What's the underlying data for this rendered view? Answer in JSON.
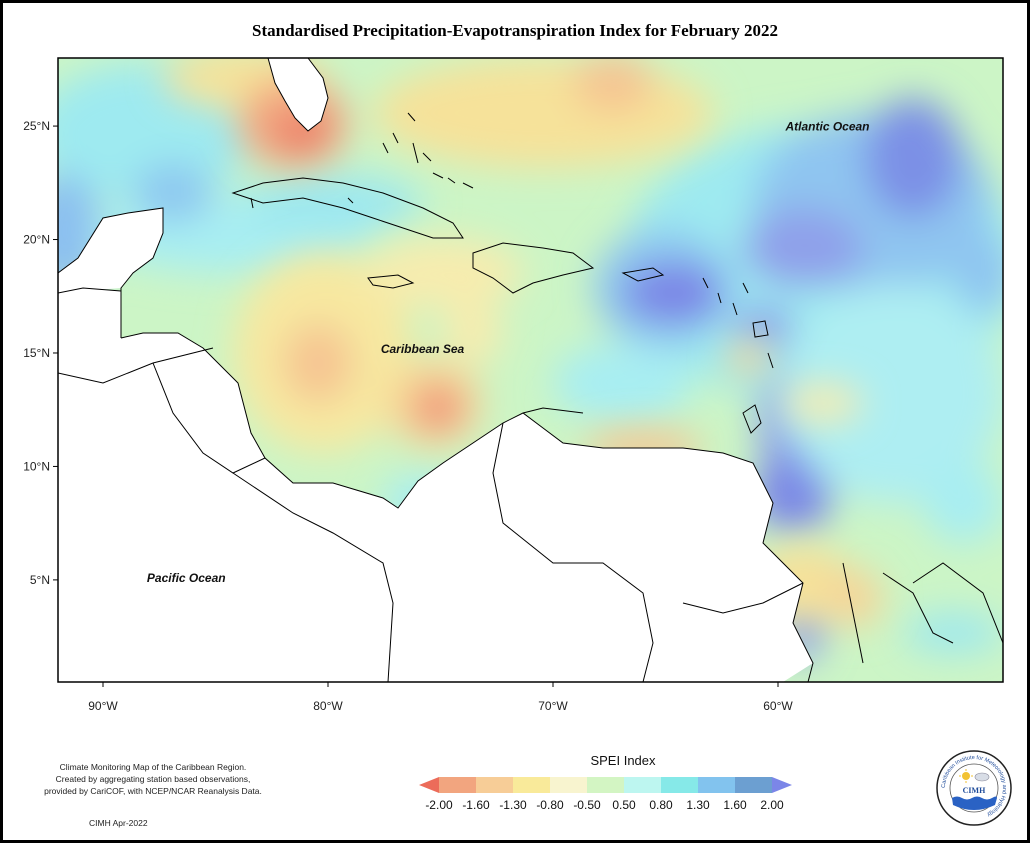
{
  "title": "Standardised Precipitation-Evapotranspiration Index for February 2022",
  "map": {
    "extent": {
      "lon": [
        -92,
        -50
      ],
      "lat": [
        0.5,
        28
      ]
    },
    "x_ticks": [
      {
        "lon": -90,
        "label": "90°W"
      },
      {
        "lon": -80,
        "label": "80°W"
      },
      {
        "lon": -70,
        "label": "70°W"
      },
      {
        "lon": -60,
        "label": "60°W"
      }
    ],
    "y_ticks": [
      {
        "lat": 25,
        "label": "25°N"
      },
      {
        "lat": 20,
        "label": "20°N"
      },
      {
        "lat": 15,
        "label": "15°N"
      },
      {
        "lat": 10,
        "label": "10°N"
      },
      {
        "lat": 5,
        "label": "5°N"
      }
    ],
    "labels": [
      {
        "text": "Atlantic Ocean",
        "lon": -57.8,
        "lat": 24.8
      },
      {
        "text": "Caribbean Sea",
        "lon": -75.8,
        "lat": 15.0
      },
      {
        "text": "Pacific Ocean",
        "lon": -86.3,
        "lat": 4.9
      }
    ]
  },
  "legend": {
    "title": "SPEI Index",
    "ticks": [
      "-2.00",
      "-1.60",
      "-1.30",
      "-0.80",
      "-0.50",
      "0.50",
      "0.80",
      "1.30",
      "1.60",
      "2.00"
    ],
    "colors": [
      "#ec6c5a",
      "#f2a57f",
      "#f7cd97",
      "#f9ea9a",
      "#f8f4cf",
      "#d3f5c3",
      "#bdf6f0",
      "#86e9e8",
      "#82c3ee",
      "#6c9fd1",
      "#7b86e8"
    ]
  },
  "credits": {
    "lines": [
      "Climate Monitoring Map of the Caribbean Region.",
      "Created by aggregating station based observations,",
      "provided by CariCOF, with NCEP/NCAR Reanalysis Data."
    ],
    "date": "CIMH Apr-2022"
  },
  "logo": {
    "ring_text": "Caribbean Institute for Meteorology and Hydrology",
    "acronym": "CIMH"
  }
}
